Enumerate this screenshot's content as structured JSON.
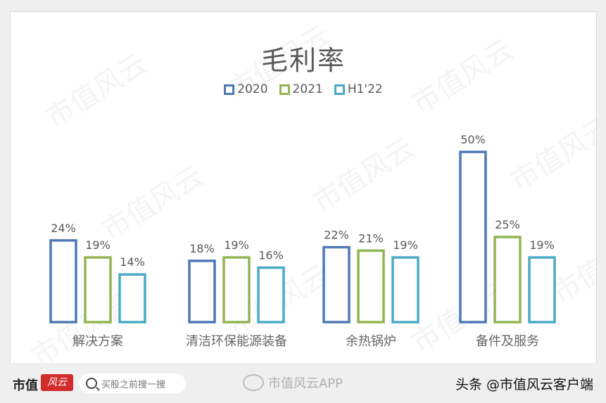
{
  "watermark_text": "市值风云",
  "chart_data": {
    "type": "bar",
    "title": "毛利率",
    "categories": [
      "解决方案",
      "清洁环保能源装备",
      "余热锅炉",
      "备件及服务"
    ],
    "series": [
      {
        "name": "2020",
        "values": [
          24,
          18,
          22,
          50
        ],
        "labels": [
          "24%",
          "18%",
          "22%",
          "50%"
        ],
        "color": "#4e79b5"
      },
      {
        "name": "2021",
        "values": [
          19,
          19,
          21,
          25
        ],
        "labels": [
          "19%",
          "19%",
          "21%",
          "25%"
        ],
        "color": "#92b553"
      },
      {
        "name": "H1'22",
        "values": [
          14,
          16,
          19,
          19
        ],
        "labels": [
          "14%",
          "16%",
          "19%",
          "19%"
        ],
        "color": "#4aabc6"
      }
    ],
    "xlabel": "",
    "ylabel": "",
    "ylim": [
      0,
      50
    ],
    "grid": false,
    "legend": "top-center",
    "value_labels": true
  },
  "footer": {
    "brand": "市值",
    "brand_tag": "风云",
    "search_placeholder": "买股之前搜一搜",
    "platform": "市值风云APP",
    "author": "头条 @市值风云客户端"
  }
}
